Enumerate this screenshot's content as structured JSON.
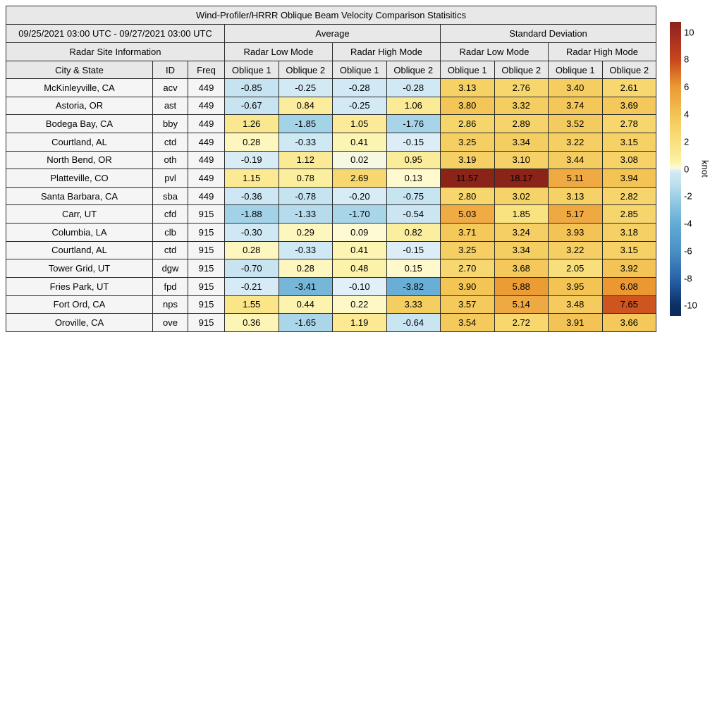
{
  "chart_data": {
    "type": "table",
    "title": "Wind-Profiler/HRRR Oblique Beam Velocity Comparison Statisitics",
    "date_range": "09/25/2021 03:00 UTC - 09/27/2021 03:00 UTC",
    "group_headers": {
      "average": "Average",
      "std": "Standard Deviation"
    },
    "site_info_header": "Radar Site Information",
    "mode_headers": [
      "Radar Low Mode",
      "Radar High Mode",
      "Radar Low Mode",
      "Radar High Mode"
    ],
    "column_headers": [
      "City & State",
      "ID",
      "Freq",
      "Oblique 1",
      "Oblique 2",
      "Oblique 1",
      "Oblique 2",
      "Oblique 1",
      "Oblique 2",
      "Oblique 1",
      "Oblique 2"
    ],
    "rows": [
      {
        "city": "McKinleyville, CA",
        "id": "acv",
        "freq": "449",
        "values": [
          -0.85,
          -0.25,
          -0.28,
          -0.28,
          3.13,
          2.76,
          3.4,
          2.61
        ]
      },
      {
        "city": "Astoria, OR",
        "id": "ast",
        "freq": "449",
        "values": [
          -0.67,
          0.84,
          -0.25,
          1.06,
          3.8,
          3.32,
          3.74,
          3.69
        ]
      },
      {
        "city": "Bodega Bay, CA",
        "id": "bby",
        "freq": "449",
        "values": [
          1.26,
          -1.85,
          1.05,
          -1.76,
          2.86,
          2.89,
          3.52,
          2.78
        ]
      },
      {
        "city": "Courtland, AL",
        "id": "ctd",
        "freq": "449",
        "values": [
          0.28,
          -0.33,
          0.41,
          -0.15,
          3.25,
          3.34,
          3.22,
          3.15
        ]
      },
      {
        "city": "North Bend, OR",
        "id": "oth",
        "freq": "449",
        "values": [
          -0.19,
          1.12,
          0.02,
          0.95,
          3.19,
          3.1,
          3.44,
          3.08
        ]
      },
      {
        "city": "Platteville, CO",
        "id": "pvl",
        "freq": "449",
        "values": [
          1.15,
          0.78,
          2.69,
          0.13,
          11.57,
          18.17,
          5.11,
          3.94
        ]
      },
      {
        "city": "Santa Barbara, CA",
        "id": "sba",
        "freq": "449",
        "values": [
          -0.36,
          -0.78,
          -0.2,
          -0.75,
          2.8,
          3.02,
          3.13,
          2.82
        ]
      },
      {
        "city": "Carr, UT",
        "id": "cfd",
        "freq": "915",
        "values": [
          -1.88,
          -1.33,
          -1.7,
          -0.54,
          5.03,
          1.85,
          5.17,
          2.85
        ]
      },
      {
        "city": "Columbia, LA",
        "id": "clb",
        "freq": "915",
        "values": [
          -0.3,
          0.29,
          0.09,
          0.82,
          3.71,
          3.24,
          3.93,
          3.18
        ]
      },
      {
        "city": "Courtland, AL",
        "id": "ctd",
        "freq": "915",
        "values": [
          0.28,
          -0.33,
          0.41,
          -0.15,
          3.25,
          3.34,
          3.22,
          3.15
        ]
      },
      {
        "city": "Tower Grid, UT",
        "id": "dgw",
        "freq": "915",
        "values": [
          -0.7,
          0.28,
          0.48,
          0.15,
          2.7,
          3.68,
          2.05,
          3.92
        ]
      },
      {
        "city": "Fries Park, UT",
        "id": "fpd",
        "freq": "915",
        "values": [
          -0.21,
          -3.41,
          -0.1,
          -3.82,
          3.9,
          5.88,
          3.95,
          6.08
        ]
      },
      {
        "city": "Fort Ord, CA",
        "id": "nps",
        "freq": "915",
        "values": [
          1.55,
          0.44,
          0.22,
          3.33,
          3.57,
          5.14,
          3.48,
          7.65
        ]
      },
      {
        "city": "Oroville, CA",
        "id": "ove",
        "freq": "915",
        "values": [
          0.36,
          -1.65,
          1.19,
          -0.64,
          3.54,
          2.72,
          3.91,
          3.66
        ]
      }
    ],
    "colorbar": {
      "label": "knot",
      "ticks": [
        10,
        8,
        6,
        4,
        2,
        0,
        -2,
        -4,
        -6,
        -8,
        -10
      ],
      "bar_min": -10.75,
      "bar_max": 10.75
    },
    "colormap_anchors": [
      [
        -10.75,
        "#0a2b5c"
      ],
      [
        -10,
        "#0b3066"
      ],
      [
        -8,
        "#2a63a9"
      ],
      [
        -6,
        "#4a90c4"
      ],
      [
        -4,
        "#64abd4"
      ],
      [
        -2,
        "#9ed0e6"
      ],
      [
        -1,
        "#c2e1ef"
      ],
      [
        -0.3,
        "#cfe8f4"
      ],
      [
        -0.05,
        "#e4f1f9"
      ],
      [
        0.05,
        "#fefbd8"
      ],
      [
        0.5,
        "#fcf2a8"
      ],
      [
        1,
        "#fbeb98"
      ],
      [
        2,
        "#f9e07c"
      ],
      [
        3,
        "#f6d369"
      ],
      [
        4,
        "#f3c353"
      ],
      [
        5,
        "#f0ac45"
      ],
      [
        6,
        "#ec9a33"
      ],
      [
        8,
        "#c8451c"
      ],
      [
        10,
        "#9c2b20"
      ],
      [
        10.75,
        "#8a2318"
      ]
    ],
    "styles": {
      "header_bg": "#e8e8e8",
      "label_bg": "#f5f5f5",
      "border_color": "#2b2b2b"
    }
  }
}
